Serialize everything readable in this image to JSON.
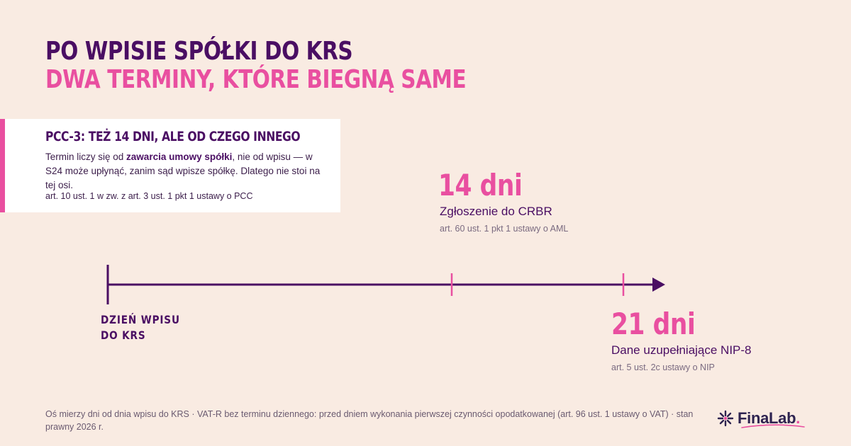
{
  "header": {
    "title_line1": "PO WPISIE SPÓŁKI DO KRS",
    "title_line2": "DWA TERMINY, KTÓRE BIEGNĄ SAME"
  },
  "card": {
    "title": "PCC-3: TEŻ 14 DNI, ALE OD CZEGO INNEGO",
    "text_before": "Termin liczy się od ",
    "text_bold": "zawarcia umowy spółki",
    "text_after": ", nie od wpisu — w S24 może upłynąć, zanim sąd wpisze spółkę. Dlatego nie stoi na tej osi.",
    "ref": "art. 10 ust. 1 w zw. z art. 3 ust. 1 pkt 1 ustawy o PCC"
  },
  "timeline": {
    "start_label_line1": "DZIEŃ WPISU",
    "start_label_line2": "DO KRS",
    "events": [
      {
        "days": "14 dni",
        "title": "Zgłoszenie do CRBR",
        "ref": "art. 60 ust. 1 pkt 1 ustawy o AML"
      },
      {
        "days": "21 dni",
        "title": "Dane uzupełniające NIP-8",
        "ref": "art. 5 ust. 2c ustawy o NIP"
      }
    ]
  },
  "footnote": "Oś mierzy dni od dnia wpisu do KRS · VAT-R bez terminu dziennego: przed dniem wykonania pierwszej czynności opodatkowanej (art. 96 ust. 1 ustawy o VAT) · stan prawny 2026 r.",
  "logo": {
    "text": "FinaLab",
    "dot": "."
  },
  "colors": {
    "accent": "#e94fa0",
    "primary": "#4a0e63",
    "background": "#f9ebe2"
  }
}
